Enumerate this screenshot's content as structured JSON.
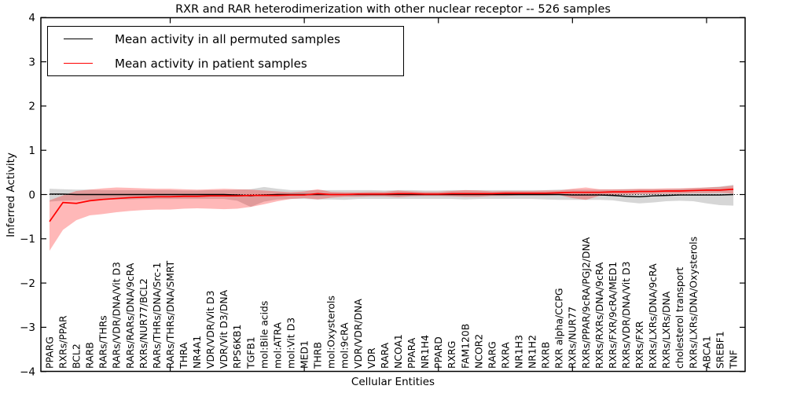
{
  "title": "RXR and RAR heterodimerization with other nuclear receptor -- 526 samples",
  "legend": {
    "items": [
      {
        "label": "Mean activity in all permuted samples",
        "color": "#000000"
      },
      {
        "label": "Mean activity in patient samples",
        "color": "#ff0000"
      }
    ]
  },
  "axes": {
    "xlabel": "Cellular Entities",
    "ylabel": "Inferred Activity",
    "y_ticks": [
      4,
      3,
      2,
      1,
      0,
      -1,
      -2,
      -3,
      -4
    ],
    "ylim": [
      -4,
      4
    ]
  },
  "chart_data": {
    "type": "line",
    "title": "RXR and RAR heterodimerization with other nuclear receptor -- 526 samples",
    "xlabel": "Cellular Entities",
    "ylabel": "Inferred Activity",
    "ylim": [
      -4,
      4
    ],
    "grid": false,
    "legend_position": "upper left",
    "zero_line": "dotted black horizontal line at y=0",
    "categories": [
      "PPARG",
      "RXRs/PPAR",
      "BCL2",
      "RARB",
      "RARs/THRs",
      "RARs/VDR/DNA/Vit D3",
      "RARs/RARs/DNA/9cRA",
      "RXRs/NUR77/BCL2",
      "RARs/THRs/DNA/Src-1",
      "RARs/THRs/DNA/SMRT",
      "THRA",
      "NR4A1",
      "VDR/VDR/Vit D3",
      "VDR/Vit D3/DNA",
      "RPS6KB1",
      "TGFB1",
      "mol:Bile acids",
      "mol:ATRA",
      "mol:Vit D3",
      "MED1",
      "THRB",
      "mol:Oxysterols",
      "mol:9cRA",
      "VDR/VDR/DNA",
      "VDR",
      "RARA",
      "NCOA1",
      "PPARA",
      "NR1H4",
      "PPARD",
      "RXRG",
      "FAM120B",
      "NCOR2",
      "RARG",
      "RXRA",
      "NR1H3",
      "NR1H2",
      "RXRB",
      "RXR alpha/CCPG",
      "RXRs/NUR77",
      "RXRs/PPAR/9cRA/PGJ2/DNA",
      "RXRs/RXRs/DNA/9cRA",
      "RXRs/FXR/9cRA/MED1",
      "RXRs/VDR/DNA/Vit D3",
      "RXRs/FXR",
      "RXRs/LXRs/DNA/9cRA",
      "RXRs/LXRs/DNA",
      "cholesterol transport",
      "RXRs/LXRs/DNA/Oxysterols",
      "ABCA1",
      "SREBF1",
      "TNF"
    ],
    "series": [
      {
        "name": "Mean activity in all permuted samples",
        "color": "#000000",
        "band_color": "rgba(128,128,128,0.32)",
        "values": [
          0.01,
          0.01,
          0,
          0,
          0,
          0,
          0,
          0,
          0,
          0,
          0,
          0,
          0,
          0,
          -0.01,
          -0.03,
          -0.01,
          0,
          0,
          0,
          0,
          0,
          0,
          0,
          0,
          0,
          0,
          0,
          0,
          0,
          0,
          0,
          0,
          0,
          0,
          0,
          0,
          0,
          0,
          -0.01,
          -0.01,
          -0.01,
          -0.02,
          -0.04,
          -0.05,
          -0.03,
          -0.02,
          -0.01,
          -0.01,
          -0.01,
          -0.01,
          0
        ],
        "band_low": [
          -0.16,
          -0.14,
          -0.13,
          -0.12,
          -0.12,
          -0.11,
          -0.11,
          -0.1,
          -0.1,
          -0.1,
          -0.1,
          -0.1,
          -0.1,
          -0.1,
          -0.14,
          -0.28,
          -0.16,
          -0.11,
          -0.1,
          -0.1,
          -0.11,
          -0.11,
          -0.12,
          -0.1,
          -0.1,
          -0.1,
          -0.1,
          -0.1,
          -0.1,
          -0.1,
          -0.1,
          -0.11,
          -0.1,
          -0.1,
          -0.1,
          -0.1,
          -0.1,
          -0.11,
          -0.12,
          -0.12,
          -0.12,
          -0.12,
          -0.13,
          -0.17,
          -0.2,
          -0.18,
          -0.15,
          -0.14,
          -0.15,
          -0.2,
          -0.24,
          -0.25
        ],
        "band_high": [
          0.13,
          0.12,
          0.11,
          0.11,
          0.1,
          0.1,
          0.1,
          0.1,
          0.1,
          0.1,
          0.09,
          0.09,
          0.1,
          0.1,
          0.11,
          0.12,
          0.17,
          0.13,
          0.1,
          0.1,
          0.1,
          0.1,
          0.1,
          0.1,
          0.1,
          0.09,
          0.1,
          0.1,
          0.09,
          0.09,
          0.1,
          0.1,
          0.1,
          0.1,
          0.1,
          0.1,
          0.1,
          0.1,
          0.11,
          0.11,
          0.11,
          0.11,
          0.11,
          0.12,
          0.12,
          0.12,
          0.12,
          0.13,
          0.14,
          0.16,
          0.18,
          0.22
        ]
      },
      {
        "name": "Mean activity in patient samples",
        "color": "#ff0000",
        "band_color": "rgba(255,0,0,0.28)",
        "values": [
          -0.61,
          -0.18,
          -0.2,
          -0.14,
          -0.11,
          -0.09,
          -0.07,
          -0.06,
          -0.05,
          -0.05,
          -0.04,
          -0.04,
          -0.03,
          -0.03,
          -0.03,
          -0.02,
          -0.02,
          -0.02,
          -0.01,
          -0.01,
          0.02,
          0,
          0,
          0.01,
          0.01,
          0.01,
          0.02,
          0.02,
          0.01,
          0.01,
          0.02,
          0.02,
          0.02,
          0.02,
          0.03,
          0.03,
          0.03,
          0.03,
          0.04,
          0.05,
          0.05,
          0.05,
          0.06,
          0.06,
          0.07,
          0.07,
          0.08,
          0.08,
          0.09,
          0.1,
          0.1,
          0.12
        ],
        "band_low": [
          -1.27,
          -0.8,
          -0.58,
          -0.47,
          -0.44,
          -0.4,
          -0.37,
          -0.35,
          -0.34,
          -0.34,
          -0.32,
          -0.31,
          -0.32,
          -0.33,
          -0.32,
          -0.28,
          -0.22,
          -0.15,
          -0.1,
          -0.08,
          -0.11,
          -0.07,
          -0.05,
          -0.05,
          -0.04,
          -0.04,
          -0.06,
          -0.04,
          -0.03,
          -0.03,
          -0.04,
          -0.05,
          -0.05,
          -0.03,
          -0.03,
          -0.02,
          -0.02,
          -0.02,
          -0.01,
          -0.08,
          -0.12,
          -0.03,
          -0.01,
          0,
          0.01,
          0.01,
          0.02,
          0.02,
          0.03,
          0.03,
          0.04,
          0.02
        ],
        "band_high": [
          -0.13,
          -0.02,
          0.08,
          0.11,
          0.14,
          0.16,
          0.15,
          0.14,
          0.13,
          0.13,
          0.12,
          0.11,
          0.12,
          0.13,
          0.12,
          0.11,
          0.09,
          0.07,
          0.05,
          0.07,
          0.12,
          0.06,
          0.05,
          0.05,
          0.06,
          0.06,
          0.09,
          0.07,
          0.06,
          0.06,
          0.08,
          0.1,
          0.09,
          0.07,
          0.08,
          0.08,
          0.08,
          0.09,
          0.09,
          0.13,
          0.16,
          0.12,
          0.12,
          0.12,
          0.13,
          0.13,
          0.14,
          0.14,
          0.15,
          0.16,
          0.17,
          0.2
        ]
      }
    ]
  }
}
